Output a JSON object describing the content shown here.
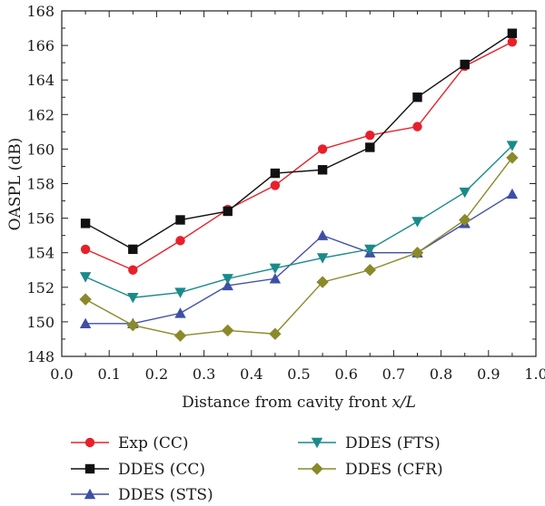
{
  "chart_data": {
    "type": "line",
    "xlabel_main": "Distance from cavity front ",
    "xlabel_italic": "x/L",
    "ylabel": "OASPL (dB)",
    "xlim": [
      0.0,
      1.0
    ],
    "ylim": [
      148,
      168
    ],
    "x_ticks": [
      "0.0",
      "0.1",
      "0.2",
      "0.3",
      "0.4",
      "0.5",
      "0.6",
      "0.7",
      "0.8",
      "0.9",
      "1.0"
    ],
    "y_ticks": [
      "148",
      "150",
      "152",
      "154",
      "156",
      "158",
      "160",
      "162",
      "164",
      "166",
      "168"
    ],
    "grid": false,
    "legend_placement": "bottom",
    "x": [
      0.05,
      0.15,
      0.25,
      0.35,
      0.45,
      0.55,
      0.65,
      0.75,
      0.85,
      0.95
    ],
    "series": [
      {
        "name": "Exp (CC)",
        "color": "#e8202a",
        "marker": "circle",
        "values": [
          154.2,
          153.0,
          154.7,
          156.5,
          157.9,
          160.0,
          160.8,
          161.3,
          164.8,
          166.2
        ]
      },
      {
        "name": "DDES (CC)",
        "color": "#111111",
        "marker": "square",
        "values": [
          155.7,
          154.2,
          155.9,
          156.4,
          158.6,
          158.8,
          160.1,
          163.0,
          164.9,
          166.7
        ]
      },
      {
        "name": "DDES (STS)",
        "color": "#3f4fa6",
        "marker": "triangle-up",
        "values": [
          149.9,
          149.9,
          150.5,
          152.1,
          152.5,
          155.0,
          154.0,
          154.0,
          155.7,
          157.4
        ]
      },
      {
        "name": "DDES (FTS)",
        "color": "#1a8a8a",
        "marker": "triangle-down",
        "values": [
          152.6,
          151.4,
          151.7,
          152.5,
          153.1,
          153.7,
          154.2,
          155.8,
          157.5,
          160.2
        ]
      },
      {
        "name": "DDES (CFR)",
        "color": "#8a8a2a",
        "marker": "diamond",
        "values": [
          151.3,
          149.8,
          149.2,
          149.5,
          149.3,
          152.3,
          153.0,
          154.0,
          155.9,
          159.5
        ]
      }
    ]
  }
}
